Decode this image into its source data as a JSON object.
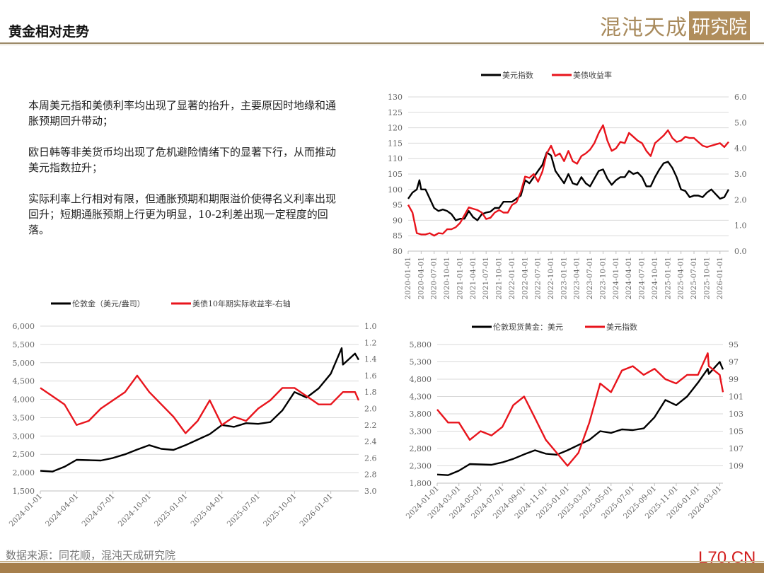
{
  "header": {
    "title": "黄金相对走势",
    "logo_text": "混沌天成",
    "logo_box": "研究院"
  },
  "text": {
    "paragraphs": [
      "本周美元指和美债利率均出现了显著的抬升，主要原因时地缘和通胀预期回升带动；",
      "欧日韩等非美货币均出现了危机避险情绪下的显著下行，从而推动美元指数拉升；",
      "实际利率上行相对有限，但通胀预期和期限溢价使得名义利率出现回升；短期通胀预期上行更为明显，10-2利差出现一定程度的回落。"
    ]
  },
  "footer": {
    "source": "数据来源：同花顺，混沌天成研究院",
    "watermark": "L70.CN"
  },
  "colors": {
    "black_series": "#000000",
    "red_series": "#e8141c",
    "grid": "#d9d9d9",
    "brand": "#a67f4c"
  },
  "chart_data": [
    {
      "type": "line",
      "title": "",
      "x_range": [
        "2020-01",
        "2026-03"
      ],
      "x_ticks": [
        "2020-01-01",
        "2020-04-01",
        "2020-07-01",
        "2020-10-01",
        "2021-01-01",
        "2021-04-01",
        "2021-07-01",
        "2021-10-01",
        "2022-01-01",
        "2022-04-01",
        "2022-07-01",
        "2022-10-01",
        "2023-01-01",
        "2023-04-01",
        "2023-07-01",
        "2023-10-01",
        "2024-01-01",
        "2024-04-01",
        "2024-07-01",
        "2024-10-01",
        "2025-01-01",
        "2025-04-01",
        "2025-07-01",
        "2025-10-01",
        "2026-01-01"
      ],
      "y_left": {
        "min": 80,
        "max": 130,
        "ticks": [
          "80",
          "85",
          "90",
          "95",
          "100",
          "105",
          "110",
          "115",
          "120",
          "125",
          "130"
        ],
        "inverted": false
      },
      "y_right": {
        "min": 0,
        "max": 6,
        "ticks": [
          "0.0",
          "1.0",
          "2.0",
          "3.0",
          "4.0",
          "5.0",
          "6.0"
        ],
        "inverted": false
      },
      "grid": true,
      "legend_position": "top-center",
      "series": [
        {
          "name": "美元指数",
          "axis": "left",
          "color": "#000000",
          "x": [
            "2020-01",
            "2020-02",
            "2020-03",
            "2020-03.6",
            "2020-04",
            "2020-05",
            "2020-06",
            "2020-07",
            "2020-08",
            "2020-09",
            "2020-10",
            "2020-11",
            "2020-12",
            "2021-01",
            "2021-02",
            "2021-03",
            "2021-04",
            "2021-05",
            "2021-06",
            "2021-07",
            "2021-08",
            "2021-09",
            "2021-10",
            "2021-11",
            "2021-12",
            "2022-01",
            "2022-02",
            "2022-03",
            "2022-04",
            "2022-05",
            "2022-06",
            "2022-07",
            "2022-08",
            "2022-09",
            "2022-10",
            "2022-11",
            "2022-12",
            "2023-01",
            "2023-02",
            "2023-03",
            "2023-04",
            "2023-05",
            "2023-06",
            "2023-07",
            "2023-08",
            "2023-09",
            "2023-10",
            "2023-11",
            "2023-12",
            "2024-01",
            "2024-02",
            "2024-03",
            "2024-04",
            "2024-05",
            "2024-06",
            "2024-07",
            "2024-08",
            "2024-09",
            "2024-10",
            "2024-11",
            "2024-12",
            "2025-01",
            "2025-02",
            "2025-03",
            "2025-04",
            "2025-05",
            "2025-06",
            "2025-07",
            "2025-08",
            "2025-09",
            "2025-10",
            "2025-11",
            "2025-12",
            "2026-01",
            "2026-02",
            "2026-03"
          ],
          "y": [
            97,
            99,
            100,
            103,
            100,
            100,
            97,
            94,
            93,
            93.5,
            93,
            92,
            90,
            90.5,
            90.5,
            93,
            91,
            90,
            92,
            92.5,
            92.8,
            94,
            94,
            96,
            96,
            96,
            97,
            98,
            103,
            102,
            104,
            106,
            108,
            112,
            111,
            106,
            104,
            102,
            105,
            102,
            101.5,
            104,
            102,
            101,
            103.5,
            106,
            106.5,
            103.5,
            101.5,
            103,
            104,
            104,
            106,
            105,
            105.5,
            104,
            101,
            101,
            104,
            106.5,
            108.5,
            109,
            107,
            104,
            100,
            99.5,
            97.5,
            98,
            98,
            97.5,
            99,
            100,
            98.5,
            97,
            97.5,
            100
          ]
        },
        {
          "name": "美债收益率",
          "axis": "right",
          "color": "#e8141c",
          "x": [
            "2020-01",
            "2020-02",
            "2020-03",
            "2020-04",
            "2020-05",
            "2020-06",
            "2020-07",
            "2020-08",
            "2020-09",
            "2020-10",
            "2020-11",
            "2020-12",
            "2021-01",
            "2021-02",
            "2021-03",
            "2021-04",
            "2021-05",
            "2021-06",
            "2021-07",
            "2021-08",
            "2021-09",
            "2021-10",
            "2021-11",
            "2021-12",
            "2022-01",
            "2022-02",
            "2022-03",
            "2022-04",
            "2022-05",
            "2022-06",
            "2022-07",
            "2022-08",
            "2022-09",
            "2022-10",
            "2022-11",
            "2022-12",
            "2023-01",
            "2023-02",
            "2023-03",
            "2023-04",
            "2023-05",
            "2023-06",
            "2023-07",
            "2023-08",
            "2023-09",
            "2023-10",
            "2023-11",
            "2023-12",
            "2024-01",
            "2024-02",
            "2024-03",
            "2024-04",
            "2024-05",
            "2024-06",
            "2024-07",
            "2024-08",
            "2024-09",
            "2024-10",
            "2024-11",
            "2024-12",
            "2025-01",
            "2025-02",
            "2025-03",
            "2025-04",
            "2025-05",
            "2025-06",
            "2025-07",
            "2025-08",
            "2025-09",
            "2025-10",
            "2025-11",
            "2025-12",
            "2026-01",
            "2026-02",
            "2026-03"
          ],
          "y": [
            1.8,
            1.5,
            0.7,
            0.65,
            0.65,
            0.7,
            0.6,
            0.7,
            0.68,
            0.85,
            0.85,
            0.93,
            1.1,
            1.4,
            1.7,
            1.65,
            1.6,
            1.5,
            1.25,
            1.3,
            1.5,
            1.6,
            1.5,
            1.5,
            1.8,
            1.9,
            2.3,
            2.9,
            2.85,
            3.0,
            2.7,
            3.1,
            3.8,
            4.1,
            3.7,
            3.8,
            3.5,
            3.9,
            3.5,
            3.4,
            3.7,
            3.8,
            3.95,
            4.2,
            4.6,
            4.9,
            4.3,
            3.9,
            4.0,
            4.25,
            4.2,
            4.6,
            4.45,
            4.3,
            4.2,
            3.9,
            3.7,
            4.2,
            4.35,
            4.5,
            4.7,
            4.4,
            4.25,
            4.3,
            4.45,
            4.4,
            4.4,
            4.25,
            4.1,
            4.05,
            4.1,
            4.15,
            4.2,
            4.05,
            4.25
          ]
        }
      ]
    },
    {
      "type": "line",
      "title": "",
      "x_range": [
        "2024-01",
        "2026-03.3"
      ],
      "x_ticks": [
        "2024-01-01",
        "2024-04-01",
        "2024-07-01",
        "2024-10-01",
        "2025-01-01",
        "2025-04-01",
        "2025-07-01",
        "2025-10-01",
        "2026-01-01"
      ],
      "y_left": {
        "min": 1500,
        "max": 6000,
        "ticks": [
          "1,500",
          "2,000",
          "2,500",
          "3,000",
          "3,500",
          "4,000",
          "4,500",
          "5,000",
          "5,500",
          "6,000"
        ],
        "inverted": false
      },
      "y_right": {
        "min": 1.0,
        "max": 3.0,
        "ticks": [
          "1.0",
          "1.2",
          "1.4",
          "1.6",
          "1.8",
          "2.0",
          "2.2",
          "2.4",
          "2.6",
          "2.8",
          "3.0"
        ],
        "inverted": true
      },
      "grid": true,
      "legend_position": "top-center",
      "series": [
        {
          "name": "伦敦金（美元/盎司）",
          "axis": "left",
          "color": "#000000",
          "x": [
            "2024-01",
            "2024-02",
            "2024-03",
            "2024-04",
            "2024-05",
            "2024-06",
            "2024-07",
            "2024-08",
            "2024-09",
            "2024-10",
            "2024-11",
            "2024-12",
            "2025-01",
            "2025-02",
            "2025-03",
            "2025-04",
            "2025-05",
            "2025-06",
            "2025-07",
            "2025-08",
            "2025-09",
            "2025-10",
            "2025-11",
            "2025-12",
            "2026-01",
            "2026-01.9",
            "2026-02",
            "2026-03",
            "2026-03.3"
          ],
          "y": [
            2050,
            2030,
            2160,
            2350,
            2340,
            2330,
            2400,
            2500,
            2630,
            2750,
            2650,
            2620,
            2750,
            2900,
            3050,
            3300,
            3250,
            3350,
            3330,
            3380,
            3700,
            4200,
            4050,
            4300,
            4700,
            5400,
            4950,
            5250,
            5080
          ]
        },
        {
          "name": "美债10年期实际收益率-右轴",
          "axis": "right",
          "color": "#e8141c",
          "x": [
            "2024-01",
            "2024-02",
            "2024-03",
            "2024-04",
            "2024-05",
            "2024-06",
            "2024-07",
            "2024-08",
            "2024-09",
            "2024-10",
            "2024-11",
            "2024-12",
            "2025-01",
            "2025-02",
            "2025-03",
            "2025-04",
            "2025-05",
            "2025-06",
            "2025-07",
            "2025-08",
            "2025-09",
            "2025-10",
            "2025-11",
            "2025-12",
            "2026-01",
            "2026-02",
            "2026-03",
            "2026-03.3"
          ],
          "y": [
            1.75,
            1.85,
            1.95,
            2.2,
            2.15,
            2.0,
            1.9,
            1.8,
            1.6,
            1.8,
            1.95,
            2.1,
            2.3,
            2.15,
            1.9,
            2.2,
            2.1,
            2.15,
            2.0,
            1.9,
            1.75,
            1.75,
            1.85,
            1.95,
            1.95,
            1.8,
            1.8,
            1.9
          ]
        }
      ]
    },
    {
      "type": "line",
      "title": "",
      "x_range": [
        "2024-01",
        "2026-03.3"
      ],
      "x_ticks": [
        "2024-01-01",
        "2024-03-01",
        "2024-05-01",
        "2024-07-01",
        "2024-09-01",
        "2024-11-01",
        "2025-01-01",
        "2025-03-01",
        "2025-05-01",
        "2025-07-01",
        "2025-09-01",
        "2025-11-01",
        "2026-01-01",
        "2026-03-01"
      ],
      "y_left": {
        "min": 1800,
        "max": 5800,
        "ticks": [
          "1,800",
          "2,300",
          "2,800",
          "3,300",
          "3,800",
          "4,300",
          "4,800",
          "5,300",
          "5,800"
        ],
        "inverted": false
      },
      "y_right": {
        "min": 95,
        "max": 111,
        "ticks": [
          "95",
          "97",
          "99",
          "101",
          "103",
          "105",
          "107",
          "109"
        ],
        "inverted": true
      },
      "grid": true,
      "legend_position": "top-center",
      "series": [
        {
          "name": "伦敦现货黄金：美元",
          "axis": "left",
          "color": "#000000",
          "x": [
            "2024-01",
            "2024-02",
            "2024-03",
            "2024-04",
            "2024-05",
            "2024-06",
            "2024-07",
            "2024-08",
            "2024-09",
            "2024-10",
            "2024-11",
            "2024-12",
            "2025-01",
            "2025-02",
            "2025-03",
            "2025-04",
            "2025-05",
            "2025-06",
            "2025-07",
            "2025-08",
            "2025-09",
            "2025-10",
            "2025-11",
            "2025-12",
            "2026-01",
            "2026-01.9",
            "2026-02",
            "2026-03",
            "2026-03.3"
          ],
          "y": [
            2050,
            2030,
            2160,
            2350,
            2340,
            2330,
            2400,
            2500,
            2630,
            2750,
            2650,
            2620,
            2750,
            2900,
            3050,
            3300,
            3250,
            3350,
            3330,
            3380,
            3700,
            4200,
            4050,
            4300,
            4700,
            5100,
            4950,
            5300,
            5080
          ]
        },
        {
          "name": "美元指数",
          "axis": "right",
          "color": "#e8141c",
          "x": [
            "2024-01",
            "2024-02",
            "2024-03",
            "2024-04",
            "2024-05",
            "2024-06",
            "2024-07",
            "2024-08",
            "2024-09",
            "2024-10",
            "2024-11",
            "2024-12",
            "2025-01",
            "2025-02",
            "2025-03",
            "2025-04",
            "2025-05",
            "2025-06",
            "2025-07",
            "2025-08",
            "2025-09",
            "2025-10",
            "2025-11",
            "2025-12",
            "2026-01",
            "2026-01.9",
            "2026-02",
            "2026-03",
            "2026-03.3"
          ],
          "y": [
            102.5,
            104,
            104,
            106,
            105,
            105.5,
            104.5,
            102,
            101,
            103.5,
            106,
            107.5,
            109,
            107.5,
            104,
            99.5,
            100.5,
            98,
            97.5,
            98.5,
            97.8,
            99,
            99.5,
            98.5,
            98.5,
            96,
            97.5,
            98.5,
            100.5
          ]
        }
      ]
    }
  ]
}
